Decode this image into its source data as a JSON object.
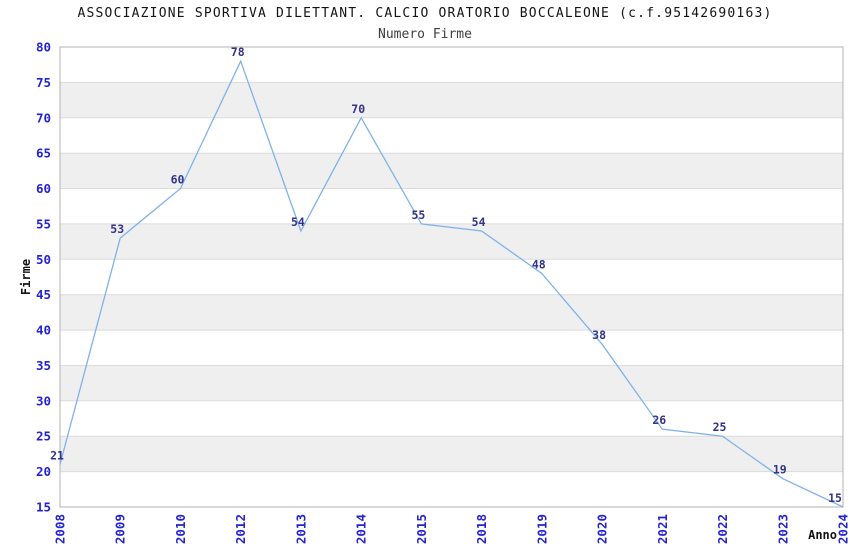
{
  "chart_data": {
    "type": "line",
    "title": "ASSOCIAZIONE SPORTIVA DILETTANT. CALCIO ORATORIO BOCCALEONE (c.f.95142690163)",
    "subtitle": "Numero Firme",
    "xlabel": "Anno",
    "ylabel": "Firme",
    "categories": [
      "2008",
      "2009",
      "2010",
      "2012",
      "2013",
      "2014",
      "2015",
      "2018",
      "2019",
      "2020",
      "2021",
      "2022",
      "2023",
      "2024"
    ],
    "values": [
      21,
      53,
      60,
      78,
      54,
      70,
      55,
      54,
      48,
      38,
      26,
      25,
      19,
      15
    ],
    "ylim": [
      15,
      80
    ],
    "ytick_step": 5,
    "grid": true,
    "legend": "none",
    "x_tick_rotation": -90,
    "data_labels": true,
    "colors": {
      "line": "#7fb2e8",
      "band": "#efefef",
      "grid": "#dcdcdc",
      "border": "#b3b3b3",
      "tick_labels": "#2424cf",
      "data_labels": "#333388",
      "title": "#141414",
      "subtitle": "#3d3d3d",
      "background": "#ffffff"
    }
  }
}
